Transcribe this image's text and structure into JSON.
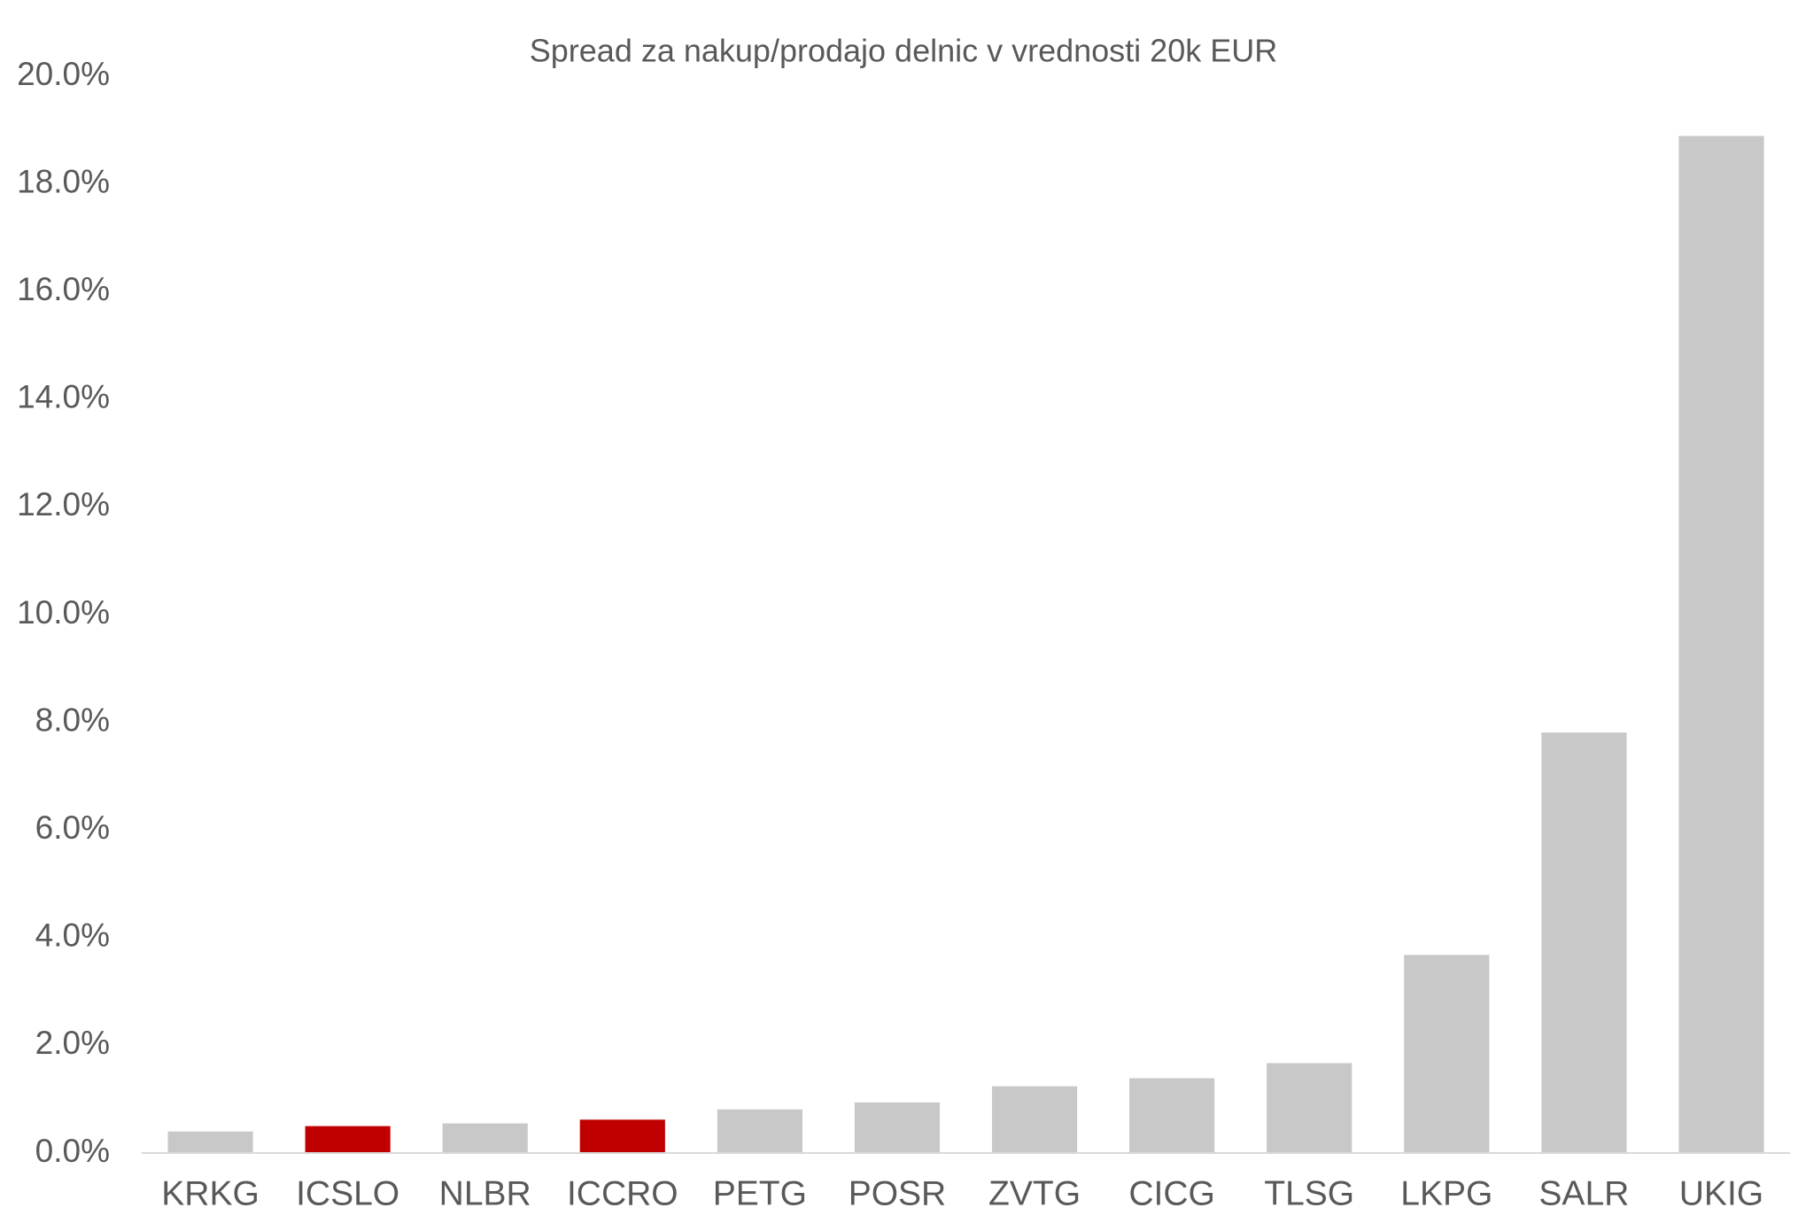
{
  "chart_data": {
    "type": "bar",
    "title": "Spread za nakup/prodajo delnic v vrednosti 20k EUR",
    "categories": [
      "KRKG",
      "ICSLO",
      "NLBR",
      "ICCRO",
      "PETG",
      "POSR",
      "ZVTG",
      "CICG",
      "TLSG",
      "LKPG",
      "SALR",
      "UKIG"
    ],
    "values": [
      0.4,
      0.5,
      0.55,
      0.62,
      0.81,
      0.94,
      1.24,
      1.39,
      1.67,
      3.68,
      7.81,
      18.89
    ],
    "colors": [
      "#c8c8c8",
      "#c00000",
      "#c8c8c8",
      "#c00000",
      "#c8c8c8",
      "#c8c8c8",
      "#c8c8c8",
      "#c8c8c8",
      "#c8c8c8",
      "#c8c8c8",
      "#c8c8c8",
      "#c8c8c8"
    ],
    "ylim": [
      0,
      20
    ],
    "yticks": [
      {
        "value": 0,
        "label": "0.0%"
      },
      {
        "value": 2,
        "label": "2.0%"
      },
      {
        "value": 4,
        "label": "4.0%"
      },
      {
        "value": 6,
        "label": "6.0%"
      },
      {
        "value": 8,
        "label": "8.0%"
      },
      {
        "value": 10,
        "label": "10.0%"
      },
      {
        "value": 12,
        "label": "12.0%"
      },
      {
        "value": 14,
        "label": "14.0%"
      },
      {
        "value": 16,
        "label": "16.0%"
      },
      {
        "value": 18,
        "label": "18.0%"
      },
      {
        "value": 20,
        "label": "20.0%"
      }
    ],
    "grid": false
  }
}
